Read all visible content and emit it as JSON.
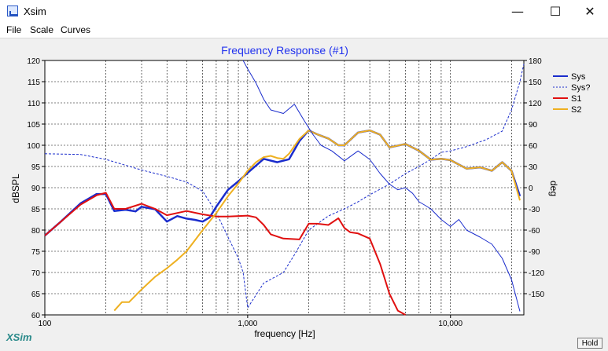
{
  "window": {
    "title": "Xsim",
    "minimize_glyph": "—",
    "maximize_glyph": "☐",
    "close_glyph": "✕"
  },
  "menu": {
    "items": [
      "File",
      "Scale",
      "Curves"
    ]
  },
  "brand": "XSim",
  "hold_label": "Hold",
  "chart_data": {
    "type": "line",
    "title": "Frequency Response (#1)",
    "xlabel": "frequency [Hz]",
    "ylabel": "dBSPL",
    "y2label": "deg",
    "x_scale": "log",
    "xlim": [
      100,
      23000
    ],
    "ylim": [
      60,
      120
    ],
    "y2lim": [
      -180,
      180
    ],
    "x_ticks": [
      100,
      1000,
      10000
    ],
    "x_tick_labels": [
      "100",
      "1,000",
      "10,000"
    ],
    "y_ticks": [
      60,
      65,
      70,
      75,
      80,
      85,
      90,
      95,
      100,
      105,
      110,
      115,
      120
    ],
    "y2_ticks": [
      -150,
      -120,
      -90,
      -60,
      -30,
      0,
      30,
      60,
      90,
      120,
      150,
      180
    ],
    "grid": true,
    "legend_position": "right",
    "series": [
      {
        "name": "Sys",
        "color": "#1a2ccc",
        "axis": "left",
        "style": "solid",
        "width": 2.5,
        "x": [
          100,
          120,
          150,
          180,
          200,
          220,
          250,
          280,
          300,
          350,
          400,
          450,
          500,
          550,
          600,
          650,
          700,
          800,
          900,
          1000,
          1200,
          1400,
          1600,
          1800,
          2000,
          2200,
          2500,
          2800,
          3000,
          3500,
          4000,
          4500,
          5000,
          6000,
          7000,
          8000,
          9000,
          10000,
          12000,
          14000,
          16000,
          18000,
          20000,
          22000
        ],
        "y": [
          78.7,
          82,
          86.3,
          88.5,
          88.5,
          84.5,
          84.8,
          84.4,
          85.5,
          84.9,
          82,
          83.3,
          82.7,
          82.4,
          82,
          83,
          85.5,
          89.5,
          91.5,
          93.5,
          96.8,
          96,
          96.7,
          101,
          103.5,
          102.6,
          101.6,
          100,
          100,
          103,
          103.5,
          102.5,
          99.5,
          100.3,
          98.7,
          96.6,
          96.8,
          96.5,
          94.5,
          94.8,
          94,
          96,
          94,
          88
        ]
      },
      {
        "name": "Sys?",
        "color": "#1a2ccc",
        "axis": "right",
        "style": "dashed",
        "width": 1,
        "x": [
          100,
          150,
          200,
          300,
          400,
          500,
          600,
          700,
          800,
          900,
          950,
          1000,
          1200,
          1500,
          1700,
          2000,
          2500,
          3000,
          3500,
          4000,
          5000,
          6000,
          7000,
          8000,
          9000,
          10000,
          12000,
          15000,
          18000,
          20000,
          22000,
          23000
        ],
        "y": [
          48,
          47,
          40,
          25,
          16,
          8,
          -5,
          -35,
          -70,
          -100,
          -120,
          -170,
          -135,
          -120,
          -95,
          -60,
          -40,
          -30,
          -20,
          -10,
          5,
          20,
          30,
          40,
          50,
          52,
          58,
          68,
          80,
          110,
          150,
          175
        ]
      },
      {
        "name": "S1",
        "color": "#e01010",
        "axis": "left",
        "style": "solid",
        "width": 2,
        "x": [
          100,
          150,
          180,
          200,
          220,
          250,
          300,
          350,
          400,
          500,
          600,
          700,
          800,
          1000,
          1100,
          1200,
          1300,
          1500,
          1800,
          2000,
          2200,
          2500,
          2800,
          3000,
          3200,
          3500,
          4000,
          4500,
          5000,
          5500,
          6000
        ],
        "y": [
          78.7,
          86,
          88.2,
          88.8,
          85,
          85,
          86.2,
          85,
          83.5,
          84.5,
          83.7,
          83.2,
          83.2,
          83.4,
          83,
          81.2,
          79,
          78,
          77.8,
          81.5,
          81.5,
          81.2,
          82.8,
          80.5,
          79.5,
          79.2,
          78,
          72,
          65,
          61,
          60
        ]
      },
      {
        "name": "S2",
        "color": "#eeb020",
        "axis": "left",
        "style": "solid",
        "width": 2,
        "x": [
          220,
          240,
          260,
          300,
          350,
          400,
          450,
          500,
          600,
          700,
          800,
          900,
          1000,
          1100,
          1200,
          1300,
          1400,
          1500,
          1600,
          1800,
          2000,
          2200,
          2500,
          2800,
          3000,
          3500,
          4000,
          4500,
          5000,
          6000,
          7000,
          8000,
          9000,
          10000,
          12000,
          14000,
          16000,
          18000,
          20000,
          22000
        ],
        "y": [
          61,
          63,
          63,
          66,
          69,
          71,
          73,
          75,
          80,
          84,
          88,
          91,
          94,
          96,
          97.2,
          97.5,
          97,
          96.8,
          98,
          101.5,
          103.5,
          102.6,
          101.6,
          100,
          100,
          103,
          103.5,
          102.5,
          99.5,
          100.3,
          98.7,
          96.6,
          96.8,
          96.5,
          94.5,
          94.8,
          94,
          96,
          94,
          87
        ]
      },
      {
        "name": "",
        "color": "#1a2ccc",
        "axis": "right",
        "style": "solid",
        "width": 1,
        "x": [
          950,
          1000,
          1100,
          1200,
          1300,
          1500,
          1700,
          1900,
          2100,
          2300,
          2600,
          3000,
          3500,
          4000,
          4500,
          5000,
          5500,
          6000,
          6500,
          7000,
          7500,
          8000,
          9000,
          10000,
          11000,
          12000,
          14000,
          16000,
          18000,
          20000,
          22000
        ],
        "y": [
          180,
          168,
          148,
          125,
          110,
          105,
          118,
          95,
          75,
          60,
          52,
          38,
          52,
          40,
          20,
          5,
          -3,
          0,
          -8,
          -20,
          -25,
          -30,
          -45,
          -55,
          -45,
          -60,
          -70,
          -80,
          -100,
          -130,
          -175
        ]
      }
    ]
  }
}
